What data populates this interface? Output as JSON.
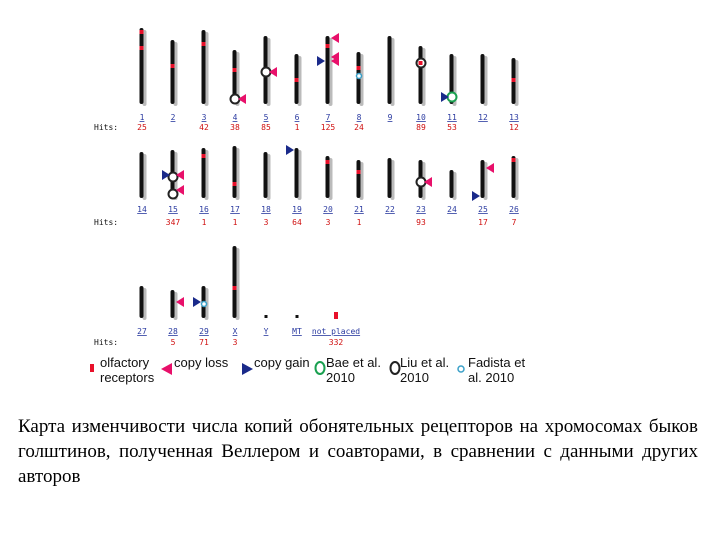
{
  "hits_label": "Hits:",
  "chromosome_rows": [
    {
      "chromosomes": [
        {
          "name": "1",
          "hits": "25"
        },
        {
          "name": "2",
          "hits": ""
        },
        {
          "name": "3",
          "hits": "42"
        },
        {
          "name": "4",
          "hits": "38"
        },
        {
          "name": "5",
          "hits": "85"
        },
        {
          "name": "6",
          "hits": "1"
        },
        {
          "name": "7",
          "hits": "125"
        },
        {
          "name": "8",
          "hits": "24"
        },
        {
          "name": "9",
          "hits": ""
        },
        {
          "name": "10",
          "hits": "89"
        },
        {
          "name": "11",
          "hits": "53"
        },
        {
          "name": "12",
          "hits": ""
        },
        {
          "name": "13",
          "hits": "12"
        }
      ]
    },
    {
      "chromosomes": [
        {
          "name": "14",
          "hits": ""
        },
        {
          "name": "15",
          "hits": "347"
        },
        {
          "name": "16",
          "hits": "1"
        },
        {
          "name": "17",
          "hits": "1"
        },
        {
          "name": "18",
          "hits": "3"
        },
        {
          "name": "19",
          "hits": "64"
        },
        {
          "name": "20",
          "hits": "3"
        },
        {
          "name": "21",
          "hits": "1"
        },
        {
          "name": "22",
          "hits": ""
        },
        {
          "name": "23",
          "hits": "93"
        },
        {
          "name": "24",
          "hits": ""
        },
        {
          "name": "25",
          "hits": "17"
        },
        {
          "name": "26",
          "hits": "7"
        }
      ]
    },
    {
      "chromosomes": [
        {
          "name": "27",
          "hits": ""
        },
        {
          "name": "28",
          "hits": "5"
        },
        {
          "name": "29",
          "hits": "71"
        },
        {
          "name": "X",
          "hits": "3"
        },
        {
          "name": "Y",
          "hits": ""
        },
        {
          "name": "MT",
          "hits": ""
        },
        {
          "name": "not placed",
          "hits": "332"
        }
      ]
    }
  ],
  "legend": {
    "olfactory": "olfactory receptors",
    "copy_loss": "copy loss",
    "copy_gain": "copy gain",
    "bae": "Bae et al. 2010",
    "liu": "Liu et al. 2010",
    "fadista": "Fadista et al. 2010"
  },
  "colors": {
    "chromosome": "#111111",
    "olfactory_marker": "#e8102a",
    "copy_loss": "#e8106a",
    "copy_gain": "#1a2a8a",
    "bae": "#1aa050",
    "liu": "#222222",
    "fadista": "#3aa0c8",
    "label_blue": "#2a3aa0",
    "hits_red": "#d01010"
  },
  "caption": "Карта изменчивости числа копий обонятельных рецепторов на хромосомах быков голштинов, полученная Веллером и соавторами, в сравнении с данными других авторов"
}
